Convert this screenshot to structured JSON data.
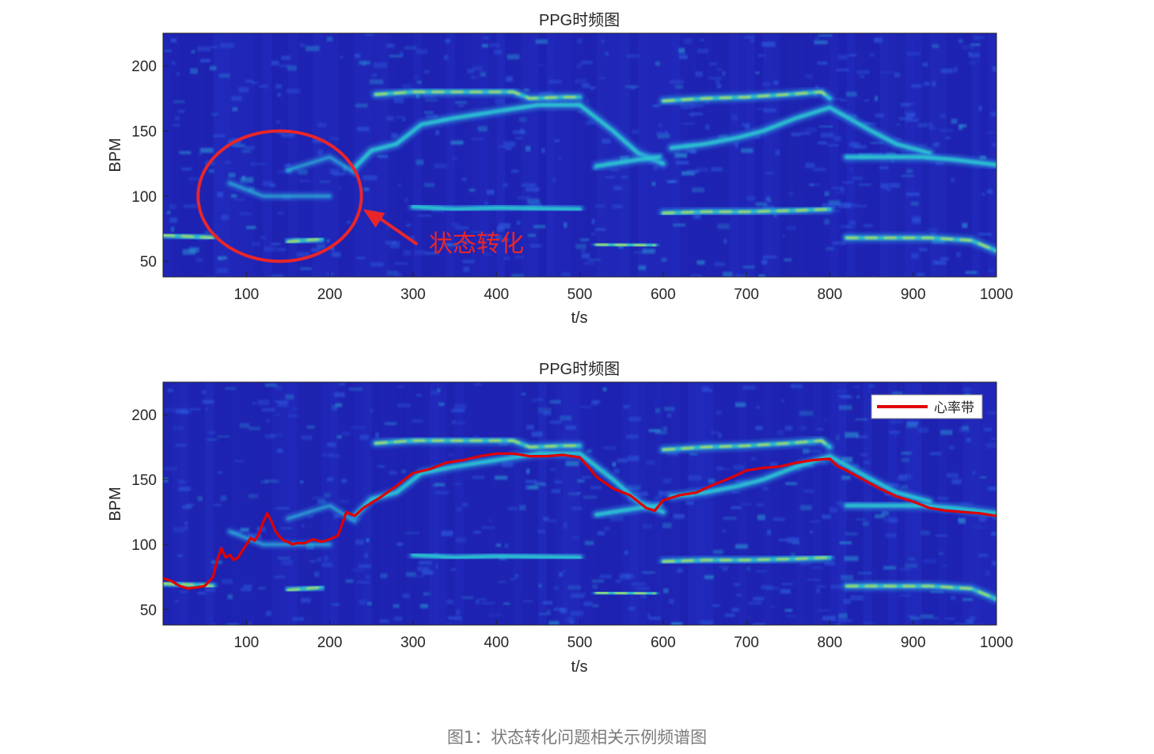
{
  "colors": {
    "background": "#1f24b4",
    "ridge_cyan": "#2cc8d2",
    "ridge_yellow": "#f3ec2a",
    "heart_rate_band": "#e00000",
    "annotation": "#e8262a",
    "caption_text": "#7a7a7a"
  },
  "chart_data": [
    {
      "type": "heatmap",
      "title": "PPG时频图",
      "xlabel": "t/s",
      "ylabel": "BPM",
      "xlim": [
        0,
        1000
      ],
      "ylim": [
        38,
        225
      ],
      "xticks": [
        100,
        200,
        300,
        400,
        500,
        600,
        700,
        800,
        900,
        1000
      ],
      "yticks": [
        50,
        100,
        150,
        200
      ],
      "colormap": "parula-like (dark blue background, cyan to yellow ridges)",
      "grid": false,
      "ridges": [
        {
          "name": "",
          "strength": "strong",
          "points": [
            [
              0,
              70
            ],
            [
              60,
              68
            ]
          ]
        },
        {
          "name": "",
          "strength": "medium",
          "points": [
            [
              0,
              138
            ],
            [
              60,
              138
            ]
          ]
        },
        {
          "name": "",
          "strength": "strong",
          "points": [
            [
              150,
              65
            ],
            [
              190,
              67
            ]
          ]
        },
        {
          "name": "",
          "strength": "weak",
          "points": [
            [
              150,
              120
            ],
            [
              200,
              130
            ],
            [
              230,
              118
            ]
          ]
        },
        {
          "name": "",
          "strength": "weak",
          "points": [
            [
              80,
              110
            ],
            [
              120,
              100
            ],
            [
              160,
              100
            ],
            [
              200,
              100
            ]
          ]
        },
        {
          "name": "",
          "strength": "medium",
          "points": [
            [
              230,
              122
            ],
            [
              250,
              135
            ],
            [
              280,
              140
            ],
            [
              310,
              155
            ],
            [
              350,
              160
            ],
            [
              400,
              165
            ],
            [
              450,
              170
            ],
            [
              500,
              170
            ],
            [
              540,
              150
            ],
            [
              570,
              133
            ],
            [
              600,
              125
            ]
          ]
        },
        {
          "name": "",
          "strength": "strong",
          "points": [
            [
              255,
              178
            ],
            [
              300,
              180
            ],
            [
              350,
              180
            ],
            [
              400,
              180
            ],
            [
              420,
              180
            ],
            [
              440,
              175
            ],
            [
              480,
              176
            ],
            [
              500,
              176
            ]
          ]
        },
        {
          "name": "",
          "strength": "medium",
          "points": [
            [
              300,
              92
            ],
            [
              350,
              90
            ],
            [
              400,
              91
            ],
            [
              500,
              90
            ]
          ]
        },
        {
          "name": "",
          "strength": "strong",
          "points": [
            [
              520,
              63
            ],
            [
              590,
              62
            ]
          ]
        },
        {
          "name": "",
          "strength": "medium",
          "points": [
            [
              520,
              123
            ],
            [
              570,
              128
            ],
            [
              595,
              130
            ]
          ]
        },
        {
          "name": "",
          "strength": "strong",
          "points": [
            [
              600,
              173
            ],
            [
              650,
              175
            ],
            [
              700,
              176
            ],
            [
              750,
              178
            ],
            [
              790,
              180
            ],
            [
              800,
              175
            ]
          ]
        },
        {
          "name": "",
          "strength": "medium",
          "points": [
            [
              610,
              137
            ],
            [
              650,
              140
            ],
            [
              690,
              145
            ],
            [
              720,
              150
            ],
            [
              760,
              160
            ],
            [
              800,
              168
            ],
            [
              850,
              150
            ],
            [
              880,
              140
            ],
            [
              920,
              133
            ]
          ]
        },
        {
          "name": "",
          "strength": "strong",
          "points": [
            [
              600,
              87
            ],
            [
              650,
              88
            ],
            [
              700,
              88
            ],
            [
              760,
              89
            ],
            [
              800,
              90
            ]
          ]
        },
        {
          "name": "",
          "strength": "medium",
          "points": [
            [
              820,
              130
            ],
            [
              870,
              130
            ],
            [
              910,
              130
            ],
            [
              950,
              128
            ],
            [
              1000,
              124
            ]
          ]
        },
        {
          "name": "",
          "strength": "strong",
          "points": [
            [
              820,
              68
            ],
            [
              870,
              68
            ],
            [
              920,
              68
            ],
            [
              970,
              66
            ],
            [
              1000,
              58
            ]
          ]
        }
      ],
      "annotations": [
        {
          "type": "ellipse",
          "label": "",
          "center": [
            140,
            100
          ],
          "radii": [
            98,
            50
          ]
        },
        {
          "type": "arrow",
          "label": "状态转化",
          "from": [
            305,
            63
          ],
          "to": [
            240,
            90
          ]
        }
      ]
    },
    {
      "type": "heatmap",
      "title": "PPG时频图",
      "xlabel": "t/s",
      "ylabel": "BPM",
      "xlim": [
        0,
        1000
      ],
      "ylim": [
        38,
        225
      ],
      "xticks": [
        100,
        200,
        300,
        400,
        500,
        600,
        700,
        800,
        900,
        1000
      ],
      "yticks": [
        50,
        100,
        150,
        200
      ],
      "legend": {
        "placement": "top-right",
        "entries": [
          "心率带"
        ]
      },
      "series": [
        {
          "name": "心率带",
          "x": [
            0,
            10,
            20,
            30,
            40,
            50,
            60,
            65,
            70,
            75,
            80,
            85,
            90,
            95,
            100,
            105,
            110,
            115,
            120,
            125,
            130,
            135,
            140,
            145,
            150,
            155,
            160,
            170,
            180,
            190,
            200,
            210,
            220,
            230,
            240,
            260,
            280,
            300,
            320,
            340,
            360,
            380,
            400,
            420,
            440,
            460,
            480,
            500,
            510,
            520,
            540,
            560,
            580,
            590,
            600,
            610,
            620,
            640,
            660,
            680,
            700,
            720,
            740,
            760,
            780,
            800,
            810,
            820,
            840,
            860,
            880,
            900,
            920,
            940,
            960,
            980,
            1000
          ],
          "values": [
            74,
            72,
            68,
            66,
            67,
            68,
            75,
            88,
            97,
            90,
            92,
            88,
            90,
            95,
            100,
            105,
            103,
            108,
            117,
            124,
            118,
            110,
            106,
            103,
            102,
            100,
            101,
            101,
            104,
            102,
            104,
            107,
            125,
            122,
            128,
            136,
            145,
            155,
            158,
            163,
            165,
            168,
            170,
            170,
            168,
            168,
            169,
            167,
            160,
            152,
            143,
            138,
            128,
            126,
            134,
            136,
            138,
            140,
            146,
            151,
            157,
            159,
            160,
            163,
            165,
            166,
            160,
            157,
            150,
            143,
            137,
            133,
            128,
            126,
            125,
            124,
            122
          ]
        }
      ]
    }
  ],
  "caption": "图1：状态转化问题相关示例频谱图"
}
